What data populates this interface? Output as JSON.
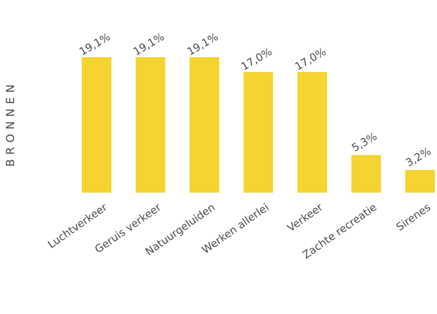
{
  "chart_data": {
    "type": "bar",
    "ylabel": "BRONNEN",
    "categories": [
      "Luchtverkeer",
      "Geruis verkeer",
      "Natuurgeluiden",
      "Werken allerlei",
      "Verkeer",
      "Zachte recreatie",
      "Sirenes"
    ],
    "values": [
      19.1,
      19.1,
      19.1,
      17.0,
      17.0,
      5.3,
      3.2
    ],
    "value_labels": [
      "19,1%",
      "19,1%",
      "19,1%",
      "17,0%",
      "17,0%",
      "5,3%",
      "3,2%"
    ],
    "ylim": [
      0,
      19.1
    ],
    "grid": false,
    "legend": "none",
    "bar_color": "#F5D330",
    "text_color": "#4A4A4A"
  }
}
